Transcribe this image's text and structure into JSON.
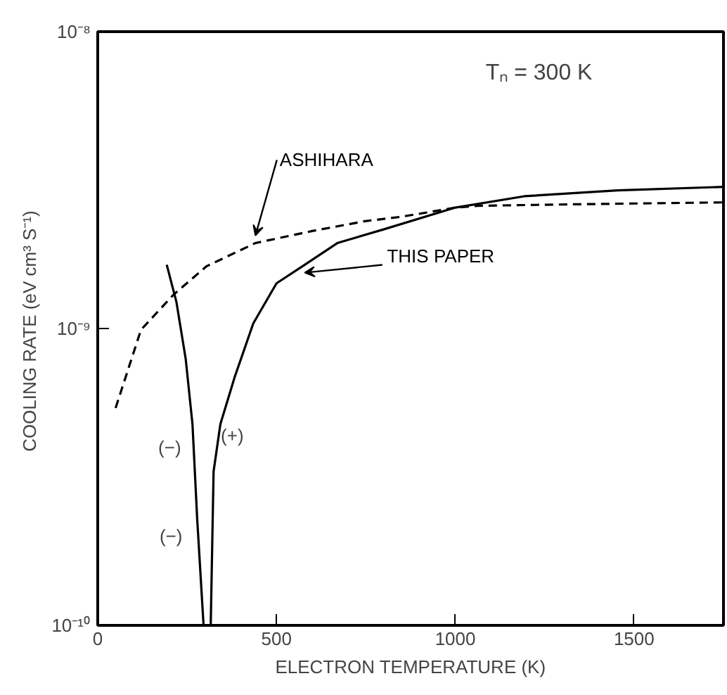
{
  "chart_data": {
    "type": "line",
    "xlabel": "ELECTRON TEMPERATURE (K)",
    "ylabel": "COOLING RATE  (eV cm³ S⁻¹)",
    "annotations": [
      "Tₙ = 300 K",
      "(−)",
      "(+)",
      "(−)"
    ],
    "log": "y",
    "xlim": [
      0,
      1750
    ],
    "xticks": [
      0,
      500,
      1000,
      1500
    ],
    "ylim": [
      1e-10,
      1e-08
    ],
    "yticks": [
      {
        "value": 1e-10,
        "label": "10⁻¹⁰"
      },
      {
        "value": 1e-09,
        "label": "10⁻⁹"
      },
      {
        "value": 1e-08,
        "label": "10⁻⁸"
      }
    ],
    "grid": false,
    "legend": false,
    "series": [
      {
        "name": "ASHIHARA",
        "color": "#000000",
        "line_style": "dashed",
        "x": [
          50,
          121,
          212,
          304,
          441,
          600,
          748,
          850,
          997,
          1062,
          1324,
          1750
        ],
        "values": [
          5.4e-10,
          9.9e-10,
          1.3e-09,
          1.62e-09,
          1.94e-09,
          2.13e-09,
          2.3e-09,
          2.38e-09,
          2.55e-09,
          2.59e-09,
          2.62e-09,
          2.66e-09
        ]
      },
      {
        "name": "THIS PAPER",
        "color": "#000000",
        "line_style": "solid",
        "x": [
          316,
          324,
          343,
          383,
          435,
          500,
          579,
          670,
          801,
          997,
          1193,
          1454,
          1750
        ],
        "values": [
          1e-10,
          3.3e-10,
          4.76e-10,
          6.86e-10,
          1.04e-09,
          1.42e-09,
          1.64e-09,
          1.94e-09,
          2.16e-09,
          2.55e-09,
          2.79e-09,
          2.92e-09,
          3e-09
        ]
      },
      {
        "color": "#000000",
        "line_style": "solid",
        "x": [
          193,
          220,
          246,
          265,
          278,
          296
        ],
        "values": [
          1.64e-09,
          1.23e-09,
          7.9e-10,
          4.76e-10,
          2.3e-10,
          1e-10
        ]
      }
    ]
  }
}
